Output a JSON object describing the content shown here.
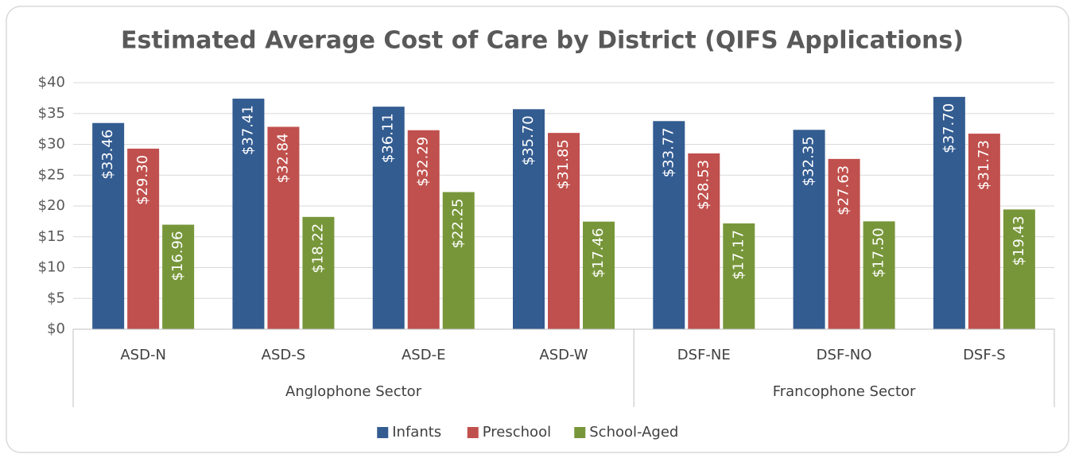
{
  "chart_data": {
    "type": "bar",
    "title": "Estimated Average Cost of Care by District (QIFS Applications)",
    "category_groups": [
      {
        "name": "Anglophone Sector",
        "categories": [
          "ASD-N",
          "ASD-S",
          "ASD-E",
          "ASD-W"
        ]
      },
      {
        "name": "Francophone Sector",
        "categories": [
          "DSF-NE",
          "DSF-NO",
          "DSF-S"
        ]
      }
    ],
    "series": [
      {
        "name": "Infants",
        "color": "#335c91",
        "values": [
          33.46,
          37.41,
          36.11,
          35.7,
          33.77,
          32.35,
          37.7
        ],
        "value_labels": [
          "$33.46",
          "$37.41",
          "$36.11",
          "$35.70",
          "$33.77",
          "$32.35",
          "$37.70"
        ]
      },
      {
        "name": "Preschool",
        "color": "#c0504d",
        "values": [
          29.3,
          32.84,
          32.29,
          31.85,
          28.53,
          27.63,
          31.73
        ],
        "value_labels": [
          "$29.30",
          "$32.84",
          "$32.29",
          "$31.85",
          "$28.53",
          "$27.63",
          "$31.73"
        ]
      },
      {
        "name": "School-Aged",
        "color": "#77963a",
        "values": [
          16.96,
          18.22,
          22.25,
          17.46,
          17.17,
          17.5,
          19.43
        ],
        "value_labels": [
          "$16.96",
          "$18.22",
          "$22.25",
          "$17.46",
          "$17.17",
          "$17.50",
          "$19.43"
        ]
      }
    ],
    "ylim": [
      0,
      40
    ],
    "yticks": [
      {
        "value": 0,
        "label": "$0"
      },
      {
        "value": 5,
        "label": "$5"
      },
      {
        "value": 10,
        "label": "$10"
      },
      {
        "value": 15,
        "label": "$15"
      },
      {
        "value": 20,
        "label": "$20"
      },
      {
        "value": 25,
        "label": "$25"
      },
      {
        "value": 30,
        "label": "$30"
      },
      {
        "value": 35,
        "label": "$35"
      },
      {
        "value": 40,
        "label": "$40"
      }
    ],
    "grid": true,
    "legend": "bottom"
  }
}
